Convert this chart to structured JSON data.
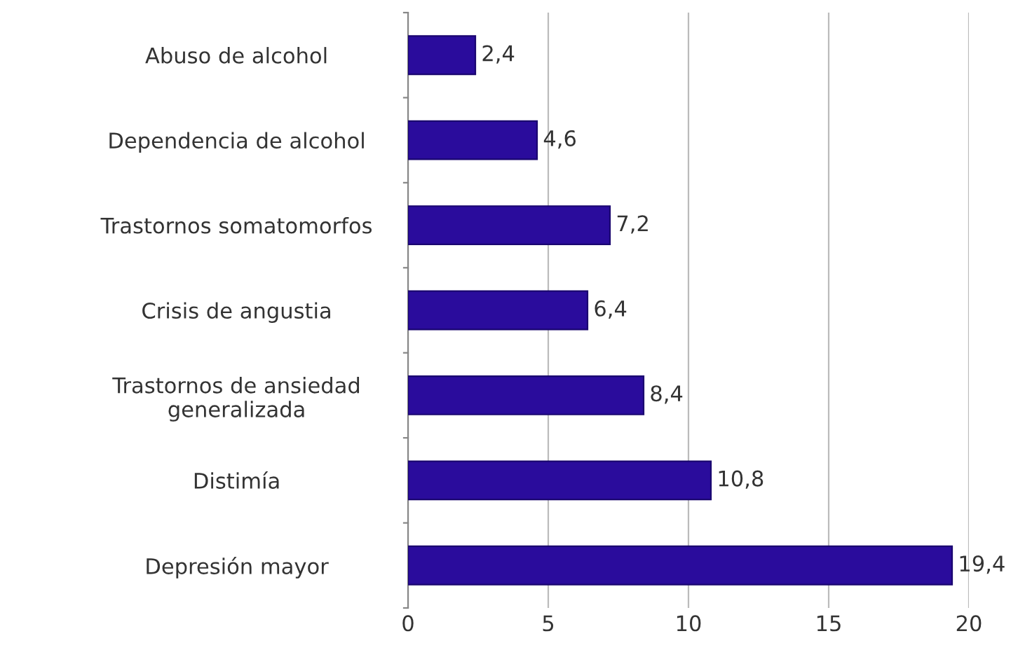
{
  "chart_data": {
    "type": "bar",
    "orientation": "horizontal",
    "categories": [
      "Abuso de alcohol",
      "Dependencia de alcohol",
      "Trastornos somatomorfos",
      "Crisis de angustia",
      "Trastornos de ansiedad\ngeneralizada",
      "Distimía",
      "Depresión mayor"
    ],
    "values": [
      2.4,
      4.6,
      7.2,
      6.4,
      8.4,
      10.8,
      19.4
    ],
    "value_labels": [
      "2,4",
      "4,6",
      "7,2",
      "6,4",
      "8,4",
      "10,8",
      "19,4"
    ],
    "color": "#2a0c9c",
    "xlim": [
      0,
      20
    ],
    "xticks": [
      0,
      5,
      10,
      15,
      20
    ],
    "grid": "x"
  }
}
